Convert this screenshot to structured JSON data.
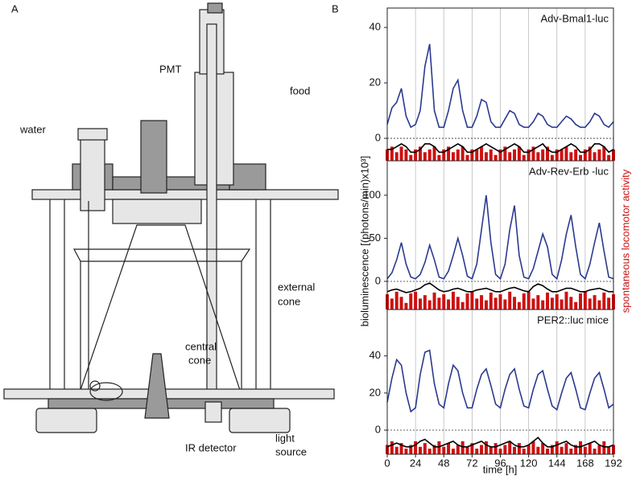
{
  "panel_a": {
    "letter": "A",
    "labels": [
      "PMT",
      "food",
      "water",
      "external",
      "cone",
      "central",
      "cone",
      "IR detector",
      "light",
      "source"
    ]
  },
  "panel_b": {
    "letter": "B",
    "ylabel": "bioluminescence [(photons/min)x10³]",
    "y2label": "spontaneous locomotor activity",
    "xlabel": "time [h]"
  },
  "chart_data": [
    {
      "type": "line",
      "title": "Adv-Bmal1-luc",
      "xlim": [
        0,
        192
      ],
      "ylim": [
        -8.1,
        47
      ],
      "yticks": [
        0,
        20,
        40
      ],
      "x": [
        0,
        4,
        8,
        12,
        16,
        20,
        24,
        28,
        32,
        36,
        40,
        44,
        48,
        52,
        56,
        60,
        64,
        68,
        72,
        76,
        80,
        84,
        88,
        92,
        96,
        100,
        104,
        108,
        112,
        116,
        120,
        124,
        128,
        132,
        136,
        140,
        144,
        148,
        152,
        156,
        160,
        164,
        168,
        172,
        176,
        180,
        184,
        188,
        192
      ],
      "series": [
        {
          "type": "bar",
          "color": "#cc1111",
          "values": [
            -4,
            -3,
            -5,
            -3,
            -4,
            -6,
            -4,
            -3,
            -5,
            -4,
            -3,
            -6,
            -4,
            -3,
            -5,
            -4,
            -3,
            -6,
            -4,
            -4,
            -3,
            -5,
            -4,
            -6,
            -4,
            -3,
            -5,
            -4,
            -3,
            -6,
            -4,
            -3,
            -5,
            -4,
            -3,
            -6,
            -4,
            -4,
            -3,
            -5,
            -4,
            -6,
            -4,
            -3,
            -5,
            -4,
            -3,
            -6,
            -4
          ]
        },
        {
          "type": "line",
          "color": "#000000",
          "values": [
            -4,
            -4,
            -3,
            -2,
            -3,
            -5,
            -5,
            -4,
            -2,
            -2,
            -3,
            -5,
            -5,
            -4,
            -3,
            -2,
            -3,
            -5,
            -5,
            -4,
            -3,
            -2,
            -3,
            -4,
            -5,
            -4,
            -3,
            -2,
            -3,
            -5,
            -5,
            -4,
            -3,
            -2,
            -4,
            -5,
            -5,
            -4,
            -3,
            -2,
            -3,
            -5,
            -5,
            -4,
            -2,
            -2,
            -3,
            -5,
            -4
          ]
        },
        {
          "type": "line",
          "color": "#2b3a8f",
          "values": [
            5,
            11,
            13,
            18,
            8,
            4,
            5,
            10,
            26,
            34,
            10,
            4,
            4,
            10,
            18,
            21,
            10,
            4,
            4,
            8,
            14,
            13,
            6,
            4,
            4,
            7,
            10,
            9,
            5,
            4,
            4,
            6,
            9,
            8,
            5,
            4,
            4,
            6,
            8,
            7,
            5,
            4,
            4,
            6,
            9,
            8,
            5,
            4,
            6
          ]
        }
      ]
    },
    {
      "type": "line",
      "title": "Adv-Rev-Erb  -luc",
      "xlim": [
        0,
        192
      ],
      "ylim": [
        -32.7,
        140
      ],
      "yticks": [
        0,
        50,
        100
      ],
      "x": [
        0,
        4,
        8,
        12,
        16,
        20,
        24,
        28,
        32,
        36,
        40,
        44,
        48,
        52,
        56,
        60,
        64,
        68,
        72,
        76,
        80,
        84,
        88,
        92,
        96,
        100,
        104,
        108,
        112,
        116,
        120,
        124,
        128,
        132,
        136,
        140,
        144,
        148,
        152,
        156,
        160,
        164,
        168,
        172,
        176,
        180,
        184,
        188,
        192
      ],
      "series": [
        {
          "type": "bar",
          "color": "#cc1111",
          "values": [
            -15,
            -20,
            -12,
            -18,
            -25,
            -14,
            -12,
            -20,
            -16,
            -22,
            -13,
            -19,
            -15,
            -21,
            -12,
            -18,
            -24,
            -14,
            -12,
            -20,
            -16,
            -22,
            -13,
            -19,
            -15,
            -21,
            -12,
            -18,
            -24,
            -14,
            -12,
            -20,
            -16,
            -22,
            -13,
            -19,
            -15,
            -21,
            -12,
            -18,
            -24,
            -14,
            -12,
            -20,
            -16,
            -22,
            -13,
            -19,
            -15
          ]
        },
        {
          "type": "line",
          "color": "#000000",
          "values": [
            -12,
            -10,
            -9,
            -11,
            -13,
            -12,
            -10,
            -8,
            -4,
            -2,
            -6,
            -10,
            -12,
            -11,
            -9,
            -8,
            -10,
            -12,
            -12,
            -10,
            -9,
            -8,
            -10,
            -12,
            -12,
            -10,
            -8,
            -7,
            -9,
            -11,
            -12,
            -6,
            -3,
            -5,
            -9,
            -12,
            -12,
            -10,
            -8,
            -8,
            -10,
            -12,
            -12,
            -10,
            -9,
            -8,
            -10,
            -12,
            -12
          ]
        },
        {
          "type": "line",
          "color": "#2b3a8f",
          "values": [
            3,
            10,
            25,
            45,
            20,
            5,
            3,
            8,
            22,
            42,
            25,
            5,
            3,
            12,
            30,
            50,
            30,
            6,
            3,
            20,
            60,
            100,
            45,
            8,
            3,
            20,
            60,
            88,
            30,
            5,
            3,
            15,
            35,
            55,
            40,
            8,
            3,
            25,
            55,
            77,
            40,
            8,
            3,
            20,
            45,
            68,
            35,
            5,
            3
          ]
        }
      ]
    },
    {
      "type": "line",
      "title": "PER2::luc mice",
      "xlim": [
        0,
        192
      ],
      "ylim": [
        -13,
        65
      ],
      "yticks": [
        0,
        20,
        40
      ],
      "xticks": [
        0,
        24,
        48,
        72,
        96,
        120,
        144,
        168,
        192
      ],
      "x": [
        0,
        4,
        8,
        12,
        16,
        20,
        24,
        28,
        32,
        36,
        40,
        44,
        48,
        52,
        56,
        60,
        64,
        68,
        72,
        76,
        80,
        84,
        88,
        92,
        96,
        100,
        104,
        108,
        112,
        116,
        120,
        124,
        128,
        132,
        136,
        140,
        144,
        148,
        152,
        156,
        160,
        164,
        168,
        172,
        176,
        180,
        184,
        188,
        192
      ],
      "series": [
        {
          "type": "bar",
          "color": "#cc1111",
          "values": [
            -8,
            -6,
            -9,
            -7,
            -10,
            -8,
            -6,
            -9,
            -7,
            -10,
            -8,
            -6,
            -9,
            -7,
            -10,
            -8,
            -6,
            -9,
            -7,
            -10,
            -8,
            -6,
            -9,
            -7,
            -10,
            -8,
            -6,
            -9,
            -7,
            -10,
            -8,
            -6,
            -9,
            -7,
            -10,
            -8,
            -6,
            -9,
            -7,
            -10,
            -8,
            -6,
            -9,
            -7,
            -10,
            -8,
            -6,
            -9,
            -8
          ]
        },
        {
          "type": "line",
          "color": "#000000",
          "values": [
            -9,
            -8,
            -7,
            -8,
            -9,
            -9,
            -8,
            -6,
            -5,
            -7,
            -9,
            -9,
            -8,
            -7,
            -6,
            -8,
            -9,
            -9,
            -8,
            -7,
            -6,
            -8,
            -9,
            -9,
            -8,
            -7,
            -6,
            -8,
            -9,
            -9,
            -8,
            -6,
            -4,
            -7,
            -9,
            -9,
            -8,
            -7,
            -6,
            -8,
            -9,
            -9,
            -8,
            -7,
            -6,
            -8,
            -9,
            -9,
            -8
          ]
        },
        {
          "type": "line",
          "color": "#2b3a8f",
          "values": [
            15,
            28,
            38,
            35,
            20,
            10,
            12,
            30,
            42,
            43,
            25,
            14,
            12,
            25,
            35,
            32,
            20,
            12,
            12,
            22,
            30,
            33,
            24,
            14,
            12,
            22,
            30,
            33,
            22,
            13,
            12,
            22,
            30,
            32,
            22,
            13,
            11,
            20,
            28,
            31,
            22,
            12,
            11,
            20,
            28,
            31,
            22,
            12,
            14
          ]
        }
      ]
    }
  ]
}
